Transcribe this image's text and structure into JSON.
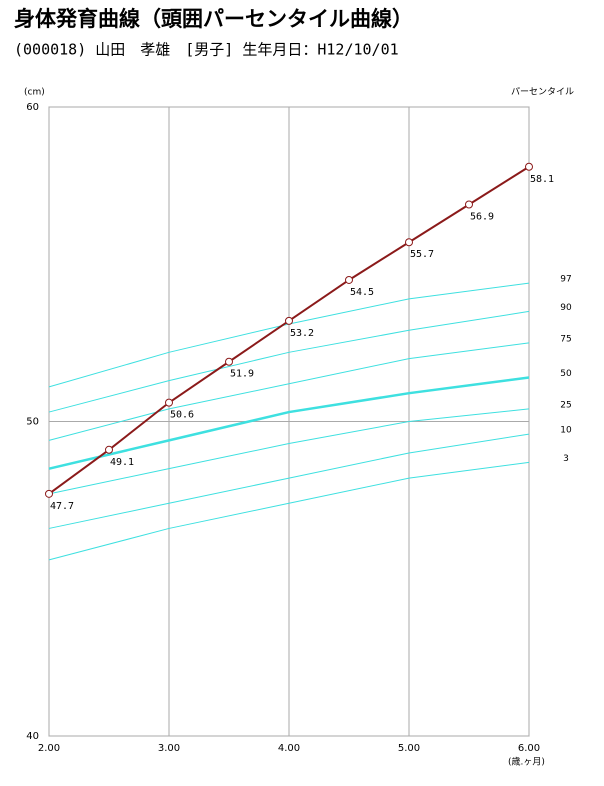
{
  "chart_data": {
    "type": "line",
    "title": "身体発育曲線（頭囲パーセンタイル曲線）",
    "subtitle": "(000018) 山田　孝雄　[男子] 生年月日：H12/10/01",
    "y_label": "(cm)",
    "x_label": "(歳.ヶ月)",
    "percentile_label": "パーセンタイル",
    "x": [
      2.0,
      2.5,
      3.0,
      3.5,
      4.0,
      4.5,
      5.0,
      5.5,
      6.0
    ],
    "series": [
      {
        "color": "#8b1a1a",
        "values": [
          47.7,
          49.1,
          50.6,
          51.9,
          53.2,
          54.5,
          55.7,
          56.9,
          58.1
        ]
      }
    ],
    "curve_x": [
      2,
      3,
      4,
      5,
      6
    ],
    "percentiles": [
      {
        "name": "97",
        "color": "#3ee0e0",
        "width": 1,
        "values": [
          51.1,
          52.2,
          53.1,
          53.9,
          54.4
        ]
      },
      {
        "name": "90",
        "color": "#3ee0e0",
        "width": 1,
        "values": [
          50.3,
          51.3,
          52.2,
          52.9,
          53.5
        ]
      },
      {
        "name": "75",
        "color": "#3ee0e0",
        "width": 1,
        "values": [
          49.4,
          50.4,
          51.2,
          52.0,
          52.5
        ]
      },
      {
        "name": "50",
        "color": "#3ee0e0",
        "width": 2.5,
        "values": [
          48.5,
          49.4,
          50.3,
          50.9,
          51.4
        ]
      },
      {
        "name": "25",
        "color": "#3ee0e0",
        "width": 1,
        "values": [
          47.7,
          48.5,
          49.3,
          50.0,
          50.4
        ]
      },
      {
        "name": "10",
        "color": "#3ee0e0",
        "width": 1,
        "values": [
          46.6,
          47.4,
          48.2,
          49.0,
          49.6
        ]
      },
      {
        "name": "3",
        "color": "#3ee0e0",
        "width": 1,
        "values": [
          45.6,
          46.6,
          47.4,
          48.2,
          48.7
        ]
      }
    ],
    "xlim": [
      2,
      6
    ],
    "ylim": [
      40,
      60
    ],
    "xticks": [
      {
        "value": 2,
        "label": "2.00"
      },
      {
        "value": 3,
        "label": "3.00"
      },
      {
        "value": 4,
        "label": "4.00"
      },
      {
        "value": 5,
        "label": "5.00"
      },
      {
        "value": 6,
        "label": "6.00"
      }
    ],
    "yticks": [
      40,
      50,
      60
    ],
    "grid": true
  }
}
